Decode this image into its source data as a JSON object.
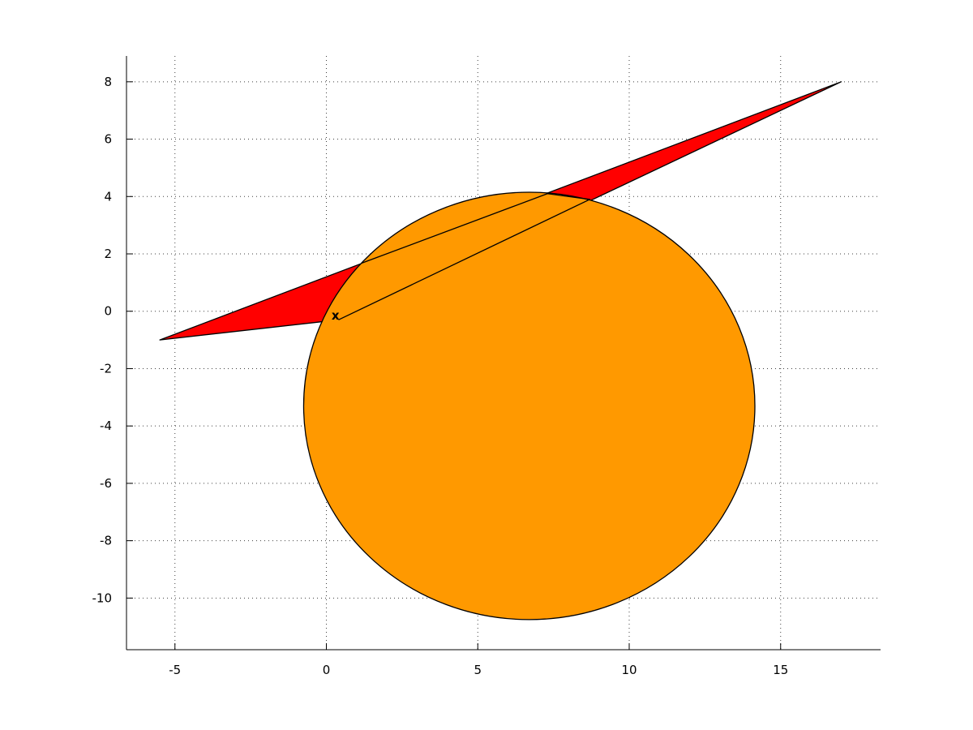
{
  "chart_data": {
    "type": "area",
    "title": "",
    "xlabel": "",
    "ylabel": "",
    "xlim": [
      -6.6,
      18.3
    ],
    "ylim": [
      -11.8,
      8.9
    ],
    "grid": true,
    "x_ticks": [
      -5,
      0,
      5,
      10,
      15
    ],
    "y_ticks": [
      -10,
      -8,
      -6,
      -4,
      -2,
      0,
      2,
      4,
      6,
      8
    ],
    "x_tick_labels": [
      "-5",
      "0",
      "5",
      "10",
      "15"
    ],
    "y_tick_labels": [
      "-10",
      "-8",
      "-6",
      "-4",
      "-2",
      "0",
      "2",
      "4",
      "6",
      "8"
    ],
    "shapes": [
      {
        "kind": "polygon",
        "fill": "#ff0000",
        "vertices": [
          [
            -5.5,
            -1.0
          ],
          [
            17.0,
            8.0
          ],
          [
            0.4,
            -0.3
          ]
        ]
      },
      {
        "kind": "circle",
        "fill": "#ff9900",
        "center": [
          6.7,
          -3.3
        ],
        "radius": 7.45
      }
    ],
    "outline": {
      "stroke": "#000000",
      "points": [
        [
          1.15,
          1.67
        ],
        [
          7.3,
          4.1
        ],
        [
          8.7,
          3.9
        ],
        [
          0.4,
          -0.3
        ]
      ]
    },
    "marker": {
      "label": "x",
      "position": [
        0.3,
        -0.15
      ]
    }
  }
}
